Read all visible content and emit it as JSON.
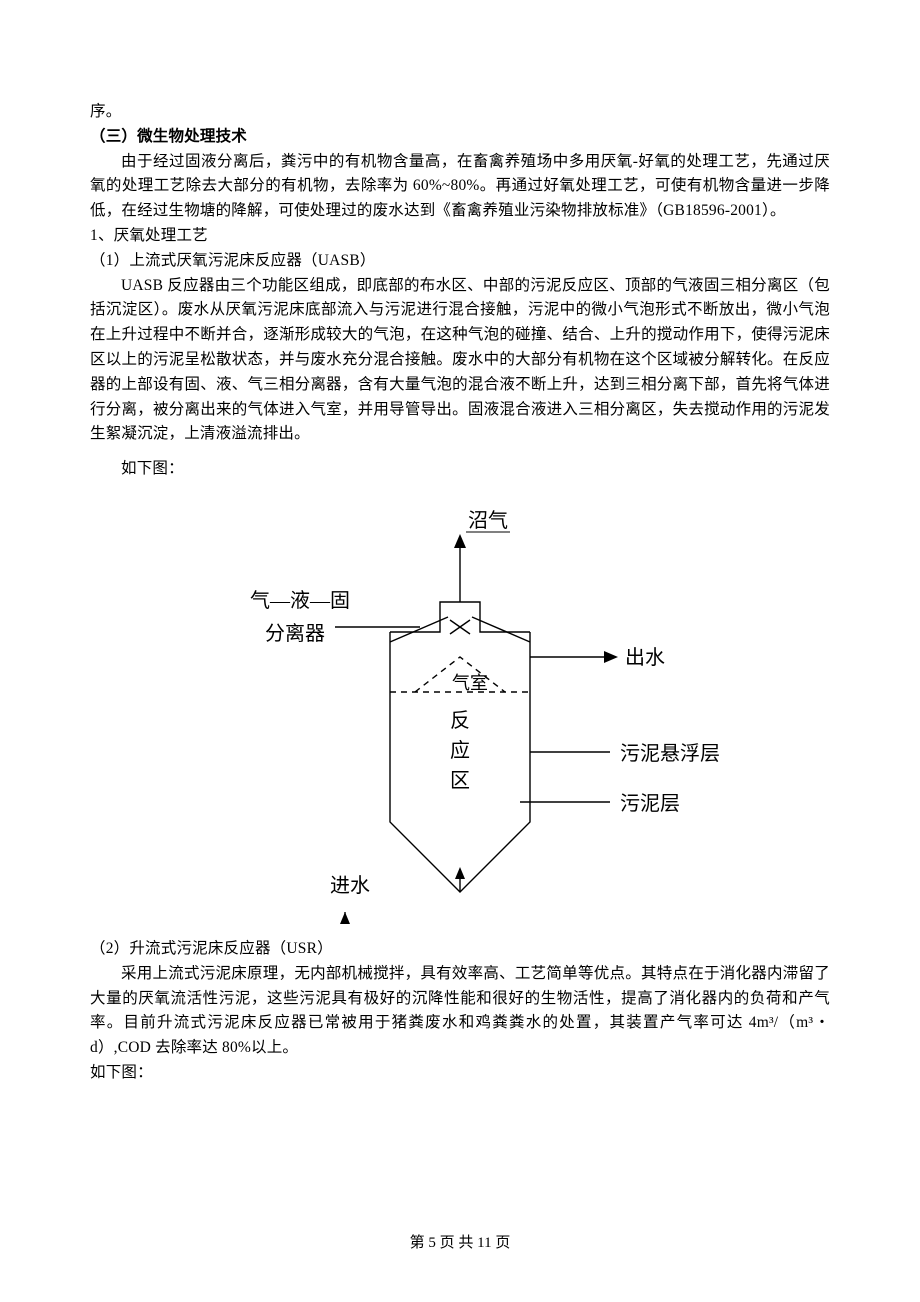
{
  "text": {
    "p0": "序。",
    "h1": "（三）微生物处理技术",
    "p1": "由于经过固液分离后，粪污中的有机物含量高，在畜禽养殖场中多用厌氧-好氧的处理工艺，先通过厌氧的处理工艺除去大部分的有机物，去除率为 60%~80%。再通过好氧处理工艺，可使有机物含量进一步降低，在经过生物塘的降解，可使处理过的废水达到《畜禽养殖业污染物排放标准》（GB18596-2001）。",
    "p2": "1、厌氧处理工艺",
    "p3": "（1）上流式厌氧污泥床反应器（UASB）",
    "p4": "UASB 反应器由三个功能区组成，即底部的布水区、中部的污泥反应区、顶部的气液固三相分离区（包括沉淀区）。废水从厌氧污泥床底部流入与污泥进行混合接触，污泥中的微小气泡形式不断放出，微小气泡在上升过程中不断并合，逐渐形成较大的气泡，在这种气泡的碰撞、结合、上升的搅动作用下，使得污泥床区以上的污泥呈松散状态，并与废水充分混合接触。废水中的大部分有机物在这个区域被分解转化。在反应器的上部设有固、液、气三相分离器，含有大量气泡的混合液不断上升，达到三相分离下部，首先将气体进行分离，被分离出来的气体进入气室，并用导管导出。固液混合液进入三相分离区，失去搅动作用的污泥发生絮凝沉淀，上清液溢流排出。",
    "p5": "如下图：",
    "p6": "（2）升流式污泥床反应器（USR）",
    "p7": "采用上流式污泥床原理，无内部机械搅拌，具有效率高、工艺简单等优点。其特点在于消化器内滞留了大量的厌氧流活性污泥，这些污泥具有极好的沉降性能和很好的生物活性，提高了消化器内的负荷和产气率。目前升流式污泥床反应器已常被用于猪粪废水和鸡粪粪水的处置，其装置产气率可达 4m³/（m³・d）,COD 去除率达 80%以上。",
    "p8": "如下图：",
    "footer": "第 5 页 共 11 页"
  },
  "diagram": {
    "labels": {
      "biogas": "沼气",
      "separator_l1": "气—液—固",
      "separator_l2": "分离器",
      "gas_chamber": "气室",
      "effluent": "出水",
      "reaction_zone_l1": "反",
      "reaction_zone_l2": "应",
      "reaction_zone_l3": "区",
      "suspended": "污泥悬浮层",
      "sludge": "污泥层",
      "inflow": "进水"
    },
    "style": {
      "stroke": "#000000",
      "stroke_width": 1.4,
      "dash": "6,5",
      "font_size": 20,
      "font_size_small": 18
    }
  }
}
